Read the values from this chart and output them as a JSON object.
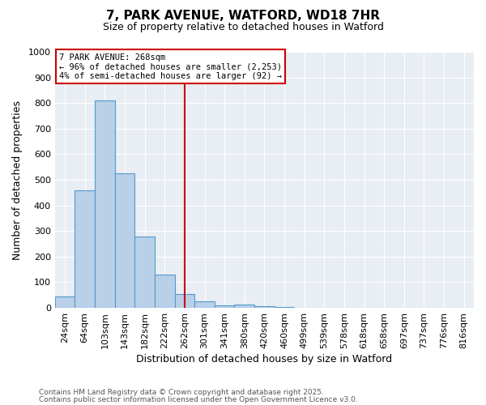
{
  "title": "7, PARK AVENUE, WATFORD, WD18 7HR",
  "subtitle": "Size of property relative to detached houses in Watford",
  "xlabel": "Distribution of detached houses by size in Watford",
  "ylabel": "Number of detached properties",
  "footnote1": "Contains HM Land Registry data © Crown copyright and database right 2025.",
  "footnote2": "Contains public sector information licensed under the Open Government Licence v3.0.",
  "bin_labels": [
    "24sqm",
    "64sqm",
    "103sqm",
    "143sqm",
    "182sqm",
    "222sqm",
    "262sqm",
    "301sqm",
    "341sqm",
    "380sqm",
    "420sqm",
    "460sqm",
    "499sqm",
    "539sqm",
    "578sqm",
    "618sqm",
    "658sqm",
    "697sqm",
    "737sqm",
    "776sqm",
    "816sqm"
  ],
  "bar_values": [
    45,
    460,
    810,
    525,
    280,
    130,
    55,
    25,
    10,
    12,
    5,
    3,
    1,
    0,
    0,
    0,
    0,
    0,
    0,
    0,
    0
  ],
  "bar_color": "#b8d0e8",
  "bar_edge_color": "#5599cc",
  "vline_x": 6.5,
  "vline_color": "#cc0000",
  "ylim": [
    0,
    1000
  ],
  "yticks": [
    0,
    100,
    200,
    300,
    400,
    500,
    600,
    700,
    800,
    900,
    1000
  ],
  "annotation_title": "7 PARK AVENUE: 268sqm",
  "annotation_line1": "← 96% of detached houses are smaller (2,253)",
  "annotation_line2": "4% of semi-detached houses are larger (92) →",
  "annotation_box_color": "#ffffff",
  "annotation_box_edge": "#cc0000",
  "background_color": "#e8eef4"
}
